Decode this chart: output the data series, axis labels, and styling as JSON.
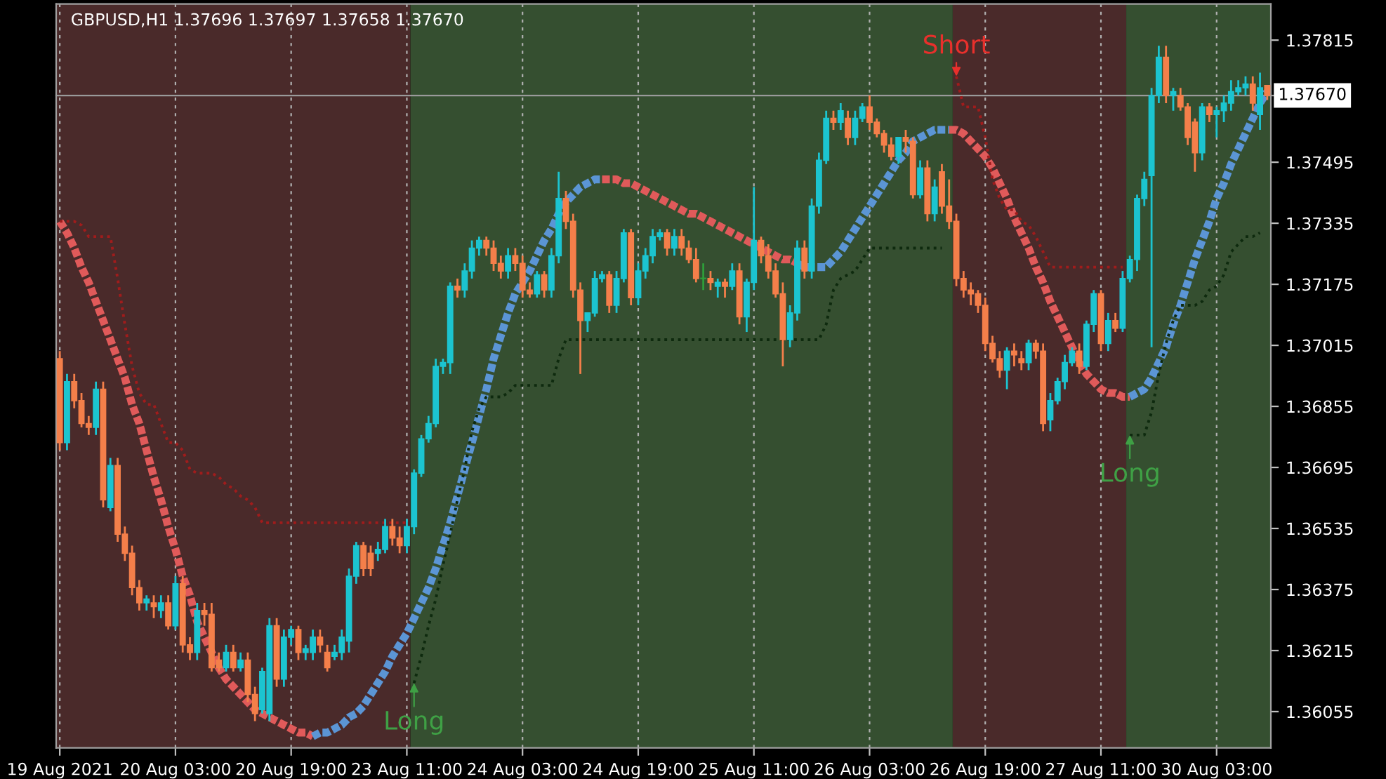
{
  "chart_data": {
    "type": "candlestick",
    "title": "GBPUSD,H1 1.37696 1.37697 1.37658 1.37670",
    "categories": [
      "19 Aug 2021",
      null,
      null,
      null,
      null,
      null,
      null,
      null,
      null,
      null,
      null,
      null,
      null,
      null,
      null,
      null,
      "20 Aug 03:00",
      null,
      null,
      null,
      null,
      null,
      null,
      null,
      null,
      null,
      null,
      null,
      null,
      null,
      null,
      null,
      "20 Aug 19:00",
      null,
      null,
      null,
      null,
      null,
      null,
      null,
      null,
      null,
      null,
      null,
      null,
      null,
      null,
      null,
      "23 Aug 11:00",
      null,
      null,
      null,
      null,
      null,
      null,
      null,
      null,
      null,
      null,
      null,
      null,
      null,
      null,
      null,
      "24 Aug 03:00",
      null,
      null,
      null,
      null,
      null,
      null,
      null,
      null,
      null,
      null,
      null,
      null,
      null,
      null,
      null,
      "24 Aug 19:00",
      null,
      null,
      null,
      null,
      null,
      null,
      null,
      null,
      null,
      null,
      null,
      null,
      null,
      null,
      null,
      "25 Aug 11:00",
      null,
      null,
      null,
      null,
      null,
      null,
      null,
      null,
      null,
      null,
      null,
      null,
      null,
      null,
      null,
      "26 Aug 03:00",
      null,
      null,
      null,
      null,
      null,
      null,
      null,
      null,
      null,
      null,
      null,
      null,
      null,
      null,
      null,
      "26 Aug 19:00",
      null,
      null,
      null,
      null,
      null,
      null,
      null,
      null,
      null,
      null,
      null,
      null,
      null,
      null,
      null,
      "27 Aug 11:00",
      null,
      null,
      null,
      null,
      null,
      null,
      null,
      null,
      null,
      null,
      null,
      null,
      null,
      null,
      null,
      "30 Aug 03:00",
      null,
      null,
      null,
      null,
      null,
      null,
      null
    ],
    "ylim": [
      1.3596,
      1.3791
    ],
    "yticks": [
      1.36055,
      1.36215,
      1.36375,
      1.36535,
      1.36695,
      1.36855,
      1.37015,
      1.37175,
      1.37335,
      1.37495,
      1.37815
    ],
    "grid": "x",
    "ref_lines": [
      {
        "axis": "y",
        "value": 1.3767,
        "label": "1.37670",
        "color": "#9a9a9a"
      }
    ],
    "annotations": [
      "Long",
      "Short",
      "Long"
    ],
    "series": [
      {
        "type": "line",
        "color": "#e05a5a",
        "line_style": "dashed",
        "values": [
          1.3734,
          1.3731,
          1.3727,
          1.3722,
          1.3718,
          1.3713,
          1.3708,
          1.3703,
          1.3698,
          1.3693,
          1.3686,
          1.3681,
          1.3674,
          1.3667,
          1.3661,
          1.3654,
          1.3648,
          1.3641,
          1.3636,
          1.3629,
          1.3625,
          1.3621,
          1.3617,
          1.3614,
          1.3612,
          1.361,
          1.3608,
          1.3606,
          1.3605,
          1.3604,
          1.3603,
          1.3602,
          1.3601,
          1.36,
          1.36,
          1.3599,
          null,
          null,
          null,
          null,
          null,
          null,
          null,
          null,
          null,
          null,
          null,
          null,
          null,
          null,
          null,
          null,
          null,
          null,
          null,
          null,
          null,
          null,
          null,
          null,
          null,
          null,
          null,
          null,
          null,
          null,
          null,
          null,
          null,
          null,
          null,
          null,
          null,
          null,
          null,
          1.3745,
          1.3745,
          1.3745,
          1.3744,
          1.3744,
          1.3743,
          1.3742,
          1.3741,
          1.374,
          1.3739,
          1.3738,
          1.3737,
          1.3736,
          1.3736,
          1.3735,
          1.3734,
          1.3733,
          1.3732,
          1.3731,
          1.373,
          1.3729,
          1.3728,
          1.3727,
          1.3726,
          1.3725,
          1.3724,
          1.3724,
          1.3723,
          null,
          null,
          null,
          null,
          null,
          null,
          null,
          null,
          null,
          null,
          null,
          null,
          null,
          null,
          null,
          null,
          null,
          null,
          null,
          null,
          1.3758,
          1.3758,
          1.3757,
          1.3755,
          1.3753,
          1.3751,
          1.3748,
          1.3744,
          1.374,
          1.3735,
          1.3731,
          1.3727,
          1.3722,
          1.3718,
          1.3713,
          1.3709,
          1.3705,
          1.3701,
          1.3697,
          1.3694,
          1.3692,
          1.369,
          1.3689,
          1.3689,
          1.3688,
          1.3688,
          null,
          null,
          null,
          null,
          null,
          null,
          null,
          null,
          null,
          null,
          null,
          null,
          null,
          null,
          null,
          null,
          null,
          null,
          null
        ]
      },
      {
        "type": "line",
        "color": "#5b95d5",
        "line_style": "dashed",
        "values": [
          null,
          null,
          null,
          null,
          null,
          null,
          null,
          null,
          null,
          null,
          null,
          null,
          null,
          null,
          null,
          null,
          null,
          null,
          null,
          null,
          null,
          null,
          null,
          null,
          null,
          null,
          null,
          null,
          null,
          null,
          null,
          null,
          null,
          null,
          null,
          1.3599,
          1.36,
          1.36,
          1.3601,
          1.3602,
          1.3604,
          1.3605,
          1.3607,
          1.361,
          1.3613,
          1.3616,
          1.362,
          1.3623,
          1.3626,
          1.363,
          1.3634,
          1.3638,
          1.3643,
          1.3649,
          1.3655,
          1.3662,
          1.3669,
          1.3676,
          1.3683,
          1.369,
          1.3698,
          1.3704,
          1.371,
          1.3715,
          1.3718,
          1.3721,
          1.3725,
          1.3729,
          1.3732,
          1.3736,
          1.3739,
          1.3741,
          1.3743,
          1.3744,
          1.3745,
          1.3745,
          null,
          null,
          null,
          null,
          null,
          null,
          null,
          null,
          null,
          null,
          null,
          null,
          null,
          null,
          null,
          null,
          null,
          null,
          null,
          null,
          null,
          null,
          null,
          null,
          null,
          null,
          1.3723,
          1.3722,
          1.3722,
          1.3722,
          1.3722,
          1.3724,
          1.3726,
          1.3729,
          1.3732,
          1.3735,
          1.3738,
          1.3741,
          1.3744,
          1.3747,
          1.375,
          1.3752,
          1.3755,
          1.3756,
          1.3757,
          1.3758,
          1.3758,
          1.3758,
          null,
          null,
          null,
          null,
          null,
          null,
          null,
          null,
          null,
          null,
          null,
          null,
          null,
          null,
          null,
          null,
          null,
          null,
          null,
          null,
          null,
          null,
          null,
          null,
          1.3688,
          1.3689,
          1.369,
          1.3693,
          1.3697,
          1.3701,
          1.3707,
          1.3712,
          1.3718,
          1.3724,
          1.3729,
          1.3734,
          1.374,
          1.3744,
          1.3749,
          1.3753,
          1.3757,
          1.3761,
          1.3765,
          1.3768
        ]
      },
      {
        "type": "line",
        "color": "#a01c1c",
        "line_style": "dotted",
        "values": [
          1.3734,
          1.3734,
          1.3734,
          1.3733,
          1.373,
          1.373,
          1.373,
          1.373,
          1.3719,
          1.3707,
          1.3696,
          1.3689,
          1.3686,
          1.3686,
          1.3681,
          1.3676,
          1.3676,
          1.3674,
          1.3669,
          1.3668,
          1.3668,
          1.3668,
          1.3667,
          1.3665,
          1.3664,
          1.3662,
          1.3661,
          1.3659,
          1.3655,
          1.3655,
          1.3655,
          1.3655,
          1.3655,
          1.3655,
          1.3655,
          1.3655,
          1.3655,
          1.3655,
          1.3655,
          1.3655,
          1.3655,
          1.3655,
          1.3655,
          1.3655,
          1.3655,
          1.3655,
          1.3655,
          1.3655,
          1.3655,
          null,
          null,
          null,
          null,
          null,
          null,
          null,
          null,
          null,
          null,
          null,
          null,
          null,
          null,
          null,
          null,
          null,
          null,
          null,
          null,
          null,
          null,
          null,
          null,
          null,
          null,
          null,
          null,
          null,
          null,
          null,
          null,
          null,
          null,
          null,
          null,
          null,
          null,
          null,
          null,
          null,
          null,
          null,
          null,
          null,
          null,
          null,
          null,
          null,
          null,
          null,
          null,
          null,
          null,
          null,
          null,
          null,
          null,
          null,
          null,
          null,
          null,
          null,
          null,
          null,
          null,
          null,
          null,
          null,
          null,
          null,
          null,
          null,
          null,
          null,
          1.3772,
          1.3764,
          1.3764,
          1.3764,
          1.3756,
          1.3745,
          1.374,
          1.3737,
          1.3737,
          1.3734,
          1.3733,
          1.373,
          1.3726,
          1.3722,
          1.3722,
          1.3722,
          1.3722,
          1.3722,
          1.3722,
          1.3722,
          1.3722,
          1.3722,
          1.3722,
          1.3722,
          null,
          null,
          null,
          null,
          null,
          null,
          null,
          null,
          null,
          null,
          null,
          null,
          null,
          null,
          null,
          null,
          null,
          null,
          null,
          null
        ]
      },
      {
        "type": "line",
        "color": "#0e2a0e",
        "line_style": "dotted",
        "values": [
          null,
          null,
          null,
          null,
          null,
          null,
          null,
          null,
          null,
          null,
          null,
          null,
          null,
          null,
          null,
          null,
          null,
          null,
          null,
          null,
          null,
          null,
          null,
          null,
          null,
          null,
          null,
          null,
          null,
          null,
          null,
          null,
          null,
          null,
          null,
          null,
          null,
          null,
          null,
          null,
          null,
          null,
          null,
          null,
          null,
          null,
          null,
          null,
          null,
          1.3613,
          1.362,
          1.3628,
          1.3635,
          1.3644,
          1.3652,
          1.3661,
          1.3669,
          1.3679,
          1.3685,
          1.3688,
          1.3688,
          1.3688,
          1.3689,
          1.3691,
          1.3691,
          1.3691,
          1.3691,
          1.3691,
          1.3691,
          1.3698,
          1.3703,
          1.3703,
          1.3703,
          1.3703,
          1.3703,
          1.3703,
          1.3703,
          1.3703,
          1.3703,
          1.3703,
          1.3703,
          1.3703,
          1.3703,
          1.3703,
          1.3703,
          1.3703,
          1.3703,
          1.3703,
          1.3703,
          1.3703,
          1.3703,
          1.3703,
          1.3703,
          1.3703,
          1.3703,
          1.3703,
          1.3703,
          1.3703,
          1.3703,
          1.3703,
          1.3703,
          1.3703,
          1.3703,
          1.3703,
          1.3703,
          1.3703,
          1.3707,
          1.3716,
          1.3719,
          1.372,
          1.3721,
          1.3724,
          1.3727,
          1.3727,
          1.3727,
          1.3727,
          1.3727,
          1.3727,
          1.3727,
          1.3727,
          1.3727,
          1.3727,
          1.3727,
          null,
          null,
          null,
          null,
          null,
          null,
          null,
          null,
          null,
          null,
          null,
          null,
          null,
          null,
          null,
          null,
          null,
          null,
          null,
          null,
          null,
          null,
          null,
          null,
          null,
          1.3678,
          1.3678,
          1.3678,
          1.3684,
          1.3694,
          1.3702,
          1.3708,
          1.3712,
          1.3712,
          1.3712,
          1.3713,
          1.3716,
          1.3717,
          1.372,
          1.3726,
          1.3728,
          1.373,
          1.373,
          1.3731,
          null
        ]
      },
      {
        "ohlc": [
          [
            1.3698,
            1.37,
            1.3674,
            1.3676
          ],
          [
            1.3676,
            1.3694,
            1.3674,
            1.3692
          ],
          [
            1.3692,
            1.3694,
            1.3685,
            1.3687
          ],
          [
            1.3687,
            1.3689,
            1.368,
            1.3681
          ],
          [
            1.3681,
            1.3683,
            1.3678,
            1.368
          ],
          [
            1.368,
            1.3692,
            1.3678,
            1.369
          ],
          [
            1.369,
            1.3692,
            1.3659,
            1.3661
          ],
          [
            1.3659,
            1.3672,
            1.3658,
            1.367
          ],
          [
            1.367,
            1.3672,
            1.365,
            1.3652
          ],
          [
            1.3652,
            1.3654,
            1.3645,
            1.3647
          ],
          [
            1.3647,
            1.3649,
            1.3636,
            1.3638
          ],
          [
            1.3638,
            1.364,
            1.3632,
            1.3634
          ],
          [
            1.3634,
            1.3636,
            1.3632,
            1.3635
          ],
          [
            1.3634,
            1.3636,
            1.363,
            1.3633
          ],
          [
            1.3632,
            1.3636,
            1.363,
            1.3634
          ],
          [
            1.3634,
            1.3636,
            1.3627,
            1.3628
          ],
          [
            1.3628,
            1.3641,
            1.3627,
            1.3639
          ],
          [
            1.3639,
            1.3641,
            1.3621,
            1.3623
          ],
          [
            1.3623,
            1.3625,
            1.3619,
            1.3621
          ],
          [
            1.3621,
            1.3634,
            1.3619,
            1.3632
          ],
          [
            1.3632,
            1.3634,
            1.3628,
            1.3631
          ],
          [
            1.3631,
            1.3634,
            1.3616,
            1.3617
          ],
          [
            1.3619,
            1.3621,
            1.3616,
            1.3617
          ],
          [
            1.3617,
            1.3623,
            1.3616,
            1.3621
          ],
          [
            1.3621,
            1.3623,
            1.3616,
            1.3617
          ],
          [
            1.3617,
            1.3621,
            1.3616,
            1.3619
          ],
          [
            1.3619,
            1.3621,
            1.3608,
            1.361
          ],
          [
            1.361,
            1.3612,
            1.3603,
            1.3605
          ],
          [
            1.3606,
            1.3617,
            1.3605,
            1.3616
          ],
          [
            1.3605,
            1.363,
            1.3603,
            1.3628
          ],
          [
            1.3628,
            1.363,
            1.3612,
            1.3614
          ],
          [
            1.3614,
            1.3627,
            1.3612,
            1.3625
          ],
          [
            1.3625,
            1.3628,
            1.3623,
            1.3627
          ],
          [
            1.3627,
            1.3628,
            1.3619,
            1.3621
          ],
          [
            1.3621,
            1.3623,
            1.3619,
            1.3622
          ],
          [
            1.3621,
            1.3627,
            1.3619,
            1.3625
          ],
          [
            1.3625,
            1.3627,
            1.3621,
            1.3623
          ],
          [
            1.3621,
            1.3623,
            1.3616,
            1.3617
          ],
          [
            1.362,
            1.3623,
            1.3619,
            1.3621
          ],
          [
            1.3621,
            1.3627,
            1.3619,
            1.3625
          ],
          [
            1.3624,
            1.3643,
            1.3621,
            1.3641
          ],
          [
            1.3641,
            1.365,
            1.3639,
            1.3649
          ],
          [
            1.3649,
            1.365,
            1.3641,
            1.3643
          ],
          [
            1.3647,
            1.3649,
            1.3641,
            1.3643
          ],
          [
            1.3647,
            1.365,
            1.3645,
            1.3648
          ],
          [
            1.3648,
            1.3656,
            1.3647,
            1.3654
          ],
          [
            1.3654,
            1.3656,
            1.3649,
            1.3651
          ],
          [
            1.3651,
            1.3654,
            1.3647,
            1.3649
          ],
          [
            1.3649,
            1.3656,
            1.3647,
            1.3654
          ],
          [
            1.3654,
            1.3669,
            1.3652,
            1.3668
          ],
          [
            1.3668,
            1.3678,
            1.3667,
            1.3677
          ],
          [
            1.3677,
            1.3683,
            1.3676,
            1.3681
          ],
          [
            1.3681,
            1.3698,
            1.368,
            1.3696
          ],
          [
            1.3696,
            1.3698,
            1.3694,
            1.3697
          ],
          [
            1.3697,
            1.3718,
            1.3694,
            1.3717
          ],
          [
            1.3717,
            1.3719,
            1.3714,
            1.3716
          ],
          [
            1.3716,
            1.3723,
            1.3714,
            1.3721
          ],
          [
            1.3721,
            1.3729,
            1.3719,
            1.3727
          ],
          [
            1.3727,
            1.373,
            1.3725,
            1.3729
          ],
          [
            1.3729,
            1.373,
            1.3725,
            1.3727
          ],
          [
            1.3727,
            1.3729,
            1.3721,
            1.3723
          ],
          [
            1.3723,
            1.3725,
            1.3719,
            1.3721
          ],
          [
            1.3721,
            1.3727,
            1.3719,
            1.3725
          ],
          [
            1.3725,
            1.3727,
            1.3721,
            1.3723
          ],
          [
            1.3723,
            1.3725,
            1.3714,
            1.3716
          ],
          [
            1.3716,
            1.3718,
            1.3714,
            1.3715
          ],
          [
            1.3715,
            1.3721,
            1.3714,
            1.372
          ],
          [
            1.372,
            1.3721,
            1.3714,
            1.3716
          ],
          [
            1.3716,
            1.3727,
            1.3714,
            1.3725
          ],
          [
            1.3725,
            1.3747,
            1.3723,
            1.374
          ],
          [
            1.374,
            1.3742,
            1.3732,
            1.3734
          ],
          [
            1.3734,
            1.3736,
            1.3714,
            1.3716
          ],
          [
            1.3716,
            1.3718,
            1.3694,
            1.3708
          ],
          [
            1.3708,
            1.371,
            1.3705,
            1.371
          ],
          [
            1.371,
            1.3721,
            1.3709,
            1.3719
          ],
          [
            1.3719,
            1.3721,
            1.3718,
            1.372
          ],
          [
            1.372,
            1.3721,
            1.371,
            1.3712
          ],
          [
            1.3712,
            1.3721,
            1.371,
            1.3719
          ],
          [
            1.3719,
            1.3732,
            1.3718,
            1.3731
          ],
          [
            1.3731,
            1.3732,
            1.3712,
            1.3714
          ],
          [
            1.3714,
            1.3723,
            1.3712,
            1.3721
          ],
          [
            1.3721,
            1.3727,
            1.3719,
            1.3725
          ],
          [
            1.3725,
            1.3732,
            1.3723,
            1.373
          ],
          [
            1.373,
            1.3732,
            1.3729,
            1.3731
          ],
          [
            1.3731,
            1.3732,
            1.3725,
            1.3727
          ],
          [
            1.3727,
            1.3732,
            1.3725,
            1.373
          ],
          [
            1.373,
            1.3732,
            1.3725,
            1.3727
          ],
          [
            1.3727,
            1.3729,
            1.3723,
            1.3724
          ],
          [
            1.3724,
            1.3727,
            1.3718,
            1.3719
          ],
          [
            1.3719,
            1.3723,
            1.3716,
            1.3719
          ],
          [
            1.3719,
            1.3721,
            1.3716,
            1.3718
          ],
          [
            1.3717,
            1.3719,
            1.3714,
            1.3718
          ],
          [
            1.3718,
            1.3719,
            1.3714,
            1.3717
          ],
          [
            1.3717,
            1.3723,
            1.3716,
            1.3721
          ],
          [
            1.3721,
            1.3723,
            1.3707,
            1.3709
          ],
          [
            1.3709,
            1.3719,
            1.3705,
            1.3718
          ],
          [
            1.3718,
            1.3743,
            1.3716,
            1.3729
          ],
          [
            1.3729,
            1.373,
            1.3723,
            1.3725
          ],
          [
            1.3725,
            1.3728,
            1.3719,
            1.3721
          ],
          [
            1.3721,
            1.3723,
            1.3714,
            1.3715
          ],
          [
            1.3715,
            1.3718,
            1.3696,
            1.3703
          ],
          [
            1.3703,
            1.3712,
            1.3701,
            1.371
          ],
          [
            1.371,
            1.3729,
            1.3708,
            1.3727
          ],
          [
            1.3727,
            1.3729,
            1.3719,
            1.3721
          ],
          [
            1.3721,
            1.374,
            1.3719,
            1.3738
          ],
          [
            1.3738,
            1.3752,
            1.3736,
            1.375
          ],
          [
            1.375,
            1.3763,
            1.3749,
            1.3761
          ],
          [
            1.3761,
            1.3763,
            1.3758,
            1.376
          ],
          [
            1.376,
            1.3765,
            1.3758,
            1.3763
          ],
          [
            1.3761,
            1.3763,
            1.3754,
            1.3756
          ],
          [
            1.3756,
            1.3763,
            1.3754,
            1.3761
          ],
          [
            1.3761,
            1.3765,
            1.376,
            1.3764
          ],
          [
            1.3764,
            1.3767,
            1.3758,
            1.376
          ],
          [
            1.376,
            1.3761,
            1.3756,
            1.3757
          ],
          [
            1.3757,
            1.3758,
            1.3752,
            1.3754
          ],
          [
            1.3754,
            1.3756,
            1.375,
            1.3751
          ],
          [
            1.3751,
            1.3756,
            1.3749,
            1.3756
          ],
          [
            1.3756,
            1.3758,
            1.3752,
            1.3755
          ],
          [
            1.3755,
            1.3756,
            1.374,
            1.3741
          ],
          [
            1.3741,
            1.375,
            1.374,
            1.3748
          ],
          [
            1.3748,
            1.375,
            1.3734,
            1.3736
          ],
          [
            1.3736,
            1.3745,
            1.3734,
            1.3743
          ],
          [
            1.3747,
            1.3749,
            1.3736,
            1.3738
          ],
          [
            1.3738,
            1.3745,
            1.3732,
            1.3734
          ],
          [
            1.3734,
            1.3736,
            1.3717,
            1.3719
          ],
          [
            1.3719,
            1.3721,
            1.3714,
            1.3716
          ],
          [
            1.3716,
            1.3718,
            1.3712,
            1.3715
          ],
          [
            1.3715,
            1.3716,
            1.371,
            1.3712
          ],
          [
            1.3712,
            1.3714,
            1.37,
            1.3702
          ],
          [
            1.3702,
            1.3704,
            1.3697,
            1.3698
          ],
          [
            1.3698,
            1.37,
            1.3693,
            1.3695
          ],
          [
            1.3695,
            1.3701,
            1.369,
            1.37
          ],
          [
            1.37,
            1.3702,
            1.3696,
            1.3699
          ],
          [
            1.3698,
            1.37,
            1.3695,
            1.3697
          ],
          [
            1.3697,
            1.3703,
            1.3695,
            1.3702
          ],
          [
            1.3702,
            1.3703,
            1.3698,
            1.37
          ],
          [
            1.37,
            1.3702,
            1.3679,
            1.3681
          ],
          [
            1.3682,
            1.3689,
            1.3679,
            1.3687
          ],
          [
            1.3687,
            1.3693,
            1.3686,
            1.3692
          ],
          [
            1.3692,
            1.3699,
            1.369,
            1.3697
          ],
          [
            1.3697,
            1.3701,
            1.3696,
            1.37
          ],
          [
            1.37,
            1.3702,
            1.3694,
            1.3696
          ],
          [
            1.3696,
            1.3708,
            1.3695,
            1.3707
          ],
          [
            1.3707,
            1.3716,
            1.3705,
            1.3715
          ],
          [
            1.3715,
            1.3716,
            1.37,
            1.3702
          ],
          [
            1.3702,
            1.371,
            1.37,
            1.3708
          ],
          [
            1.3708,
            1.371,
            1.3705,
            1.3706
          ],
          [
            1.3706,
            1.3721,
            1.3705,
            1.3719
          ],
          [
            1.3719,
            1.3725,
            1.3718,
            1.3724
          ],
          [
            1.3724,
            1.3741,
            1.3721,
            1.374
          ],
          [
            1.374,
            1.3747,
            1.3738,
            1.3745
          ],
          [
            1.3746,
            1.3769,
            1.3701,
            1.3767
          ],
          [
            1.3767,
            1.378,
            1.3765,
            1.3777
          ],
          [
            1.3777,
            1.378,
            1.3765,
            1.3767
          ],
          [
            1.3767,
            1.3769,
            1.3763,
            1.3768
          ],
          [
            1.3767,
            1.3769,
            1.3763,
            1.3764
          ],
          [
            1.3764,
            1.3765,
            1.3754,
            1.3756
          ],
          [
            1.376,
            1.3761,
            1.3747,
            1.3752
          ],
          [
            1.3752,
            1.3765,
            1.375,
            1.3764
          ],
          [
            1.3764,
            1.3765,
            1.376,
            1.3762
          ],
          [
            1.3762,
            1.3764,
            1.3756,
            1.3763
          ],
          [
            1.3763,
            1.3767,
            1.376,
            1.3765
          ],
          [
            1.3765,
            1.3771,
            1.3763,
            1.3768
          ],
          [
            1.3768,
            1.3771,
            1.3767,
            1.3769
          ],
          [
            1.3769,
            1.3772,
            1.3767,
            1.377
          ],
          [
            1.377,
            1.3772,
            1.3763,
            1.3765
          ],
          [
            1.3762,
            1.3773,
            1.3758,
            1.3769
          ],
          [
            1.37696,
            1.37697,
            1.37658,
            1.3767
          ]
        ],
        "colors": [
          "#f47f4a",
          "#1cc4d0",
          "#f47f4a",
          "#f47f4a",
          "#f47f4a",
          "#1cc4d0",
          "#f47f4a",
          "#1cc4d0",
          "#f47f4a",
          "#f47f4a",
          "#f47f4a",
          "#f47f4a",
          "#1cc4d0",
          "#f47f4a",
          "#1cc4d0",
          "#f47f4a",
          "#1cc4d0",
          "#f47f4a",
          "#f47f4a",
          "#1cc4d0",
          "#f47f4a",
          "#f47f4a",
          "#f47f4a",
          "#1cc4d0",
          "#f47f4a",
          "#1cc4d0",
          "#f47f4a",
          "#f47f4a",
          "#1cc4d0",
          "#1cc4d0",
          "#f47f4a",
          "#1cc4d0",
          "#1cc4d0",
          "#f47f4a",
          "#1cc4d0",
          "#1cc4d0",
          "#f47f4a",
          "#f47f4a",
          "#1cc4d0",
          "#1cc4d0",
          "#1cc4d0",
          "#1cc4d0",
          "#f47f4a",
          "#f47f4a",
          "#1cc4d0",
          "#1cc4d0",
          "#f47f4a",
          "#f47f4a",
          "#1cc4d0",
          "#1cc4d0",
          "#1cc4d0",
          "#1cc4d0",
          "#1cc4d0",
          "#1cc4d0",
          "#1cc4d0",
          "#f47f4a",
          "#1cc4d0",
          "#1cc4d0",
          "#1cc4d0",
          "#f47f4a",
          "#f47f4a",
          "#f47f4a",
          "#1cc4d0",
          "#f47f4a",
          "#f47f4a",
          "#f47f4a",
          "#1cc4d0",
          "#f47f4a",
          "#1cc4d0",
          "#1cc4d0",
          "#f47f4a",
          "#f47f4a",
          "#f47f4a",
          "#1cc4d0",
          "#1cc4d0",
          "#1cc4d0",
          "#f47f4a",
          "#1cc4d0",
          "#1cc4d0",
          "#f47f4a",
          "#1cc4d0",
          "#1cc4d0",
          "#1cc4d0",
          "#1cc4d0",
          "#f47f4a",
          "#1cc4d0",
          "#f47f4a",
          "#f47f4a",
          "#f47f4a",
          "#2e9e3a",
          "#f47f4a",
          "#1cc4d0",
          "#f47f4a",
          "#1cc4d0",
          "#f47f4a",
          "#1cc4d0",
          "#1cc4d0",
          "#f47f4a",
          "#f47f4a",
          "#f47f4a",
          "#f47f4a",
          "#1cc4d0",
          "#1cc4d0",
          "#f47f4a",
          "#1cc4d0",
          "#1cc4d0",
          "#1cc4d0",
          "#f47f4a",
          "#1cc4d0",
          "#f47f4a",
          "#1cc4d0",
          "#1cc4d0",
          "#f47f4a",
          "#f47f4a",
          "#f47f4a",
          "#f47f4a",
          "#1cc4d0",
          "#f47f4a",
          "#f47f4a",
          "#1cc4d0",
          "#f47f4a",
          "#1cc4d0",
          "#f47f4a",
          "#f47f4a",
          "#f47f4a",
          "#f47f4a",
          "#f47f4a",
          "#f47f4a",
          "#f47f4a",
          "#f47f4a",
          "#f47f4a",
          "#1cc4d0",
          "#f47f4a",
          "#f47f4a",
          "#1cc4d0",
          "#f47f4a",
          "#f47f4a",
          "#1cc4d0",
          "#1cc4d0",
          "#1cc4d0",
          "#1cc4d0",
          "#f47f4a",
          "#1cc4d0",
          "#1cc4d0",
          "#f47f4a",
          "#1cc4d0",
          "#f47f4a",
          "#1cc4d0",
          "#1cc4d0",
          "#1cc4d0",
          "#1cc4d0",
          "#1cc4d0",
          "#1cc4d0",
          "#f47f4a",
          "#1cc4d0",
          "#f47f4a",
          "#f47f4a",
          "#f47f4a",
          "#1cc4d0",
          "#f47f4a",
          "#1cc4d0",
          "#1cc4d0",
          "#1cc4d0",
          "#1cc4d0",
          "#1cc4d0",
          "#f47f4a",
          "#1cc4d0",
          "#f47f4a"
        ]
      }
    ]
  }
}
